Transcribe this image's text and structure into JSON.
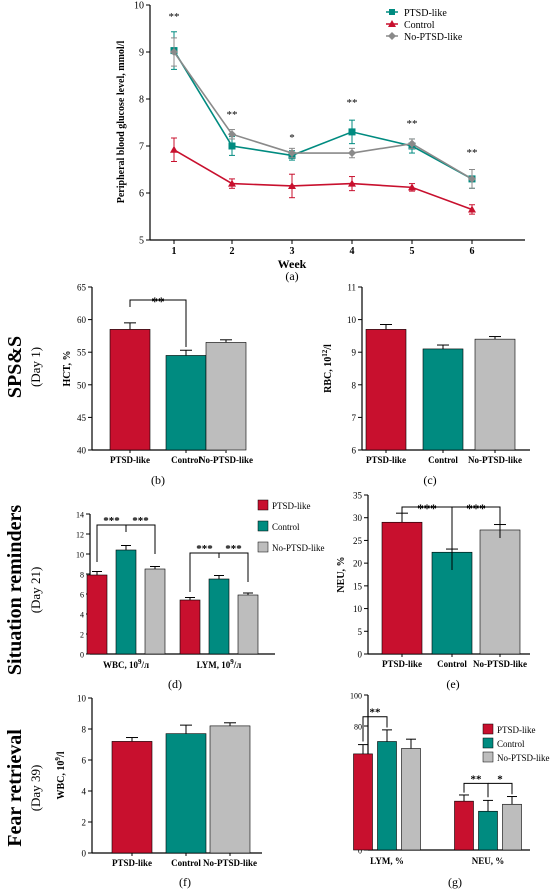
{
  "colors": {
    "ptsd": "#c8102e",
    "control": "#008b80",
    "nopsd": "#bdbdbd",
    "nopsd_line": "#8a8a8a"
  },
  "panel_a": {
    "panel_label": "(a)",
    "xlabel": "Week",
    "ylabel": "Peripheral blood glucose level, mmol/l",
    "x_ticks": [
      "1",
      "2",
      "3",
      "4",
      "5",
      "6"
    ],
    "y_ticks": [
      "5",
      "6",
      "7",
      "8",
      "9",
      "10"
    ],
    "significance": [
      "**",
      "**",
      "*",
      "**",
      "**",
      "**"
    ],
    "legend": [
      "PTSD-like",
      "Control",
      "No-PTSD-like"
    ]
  },
  "row_labels": [
    {
      "title": "SPS&S",
      "subtitle": "(Day 1)"
    },
    {
      "title": "Situation reminders",
      "subtitle": "(Day 21)"
    },
    {
      "title": "Fear retrieval",
      "subtitle": "(Day 39)"
    }
  ],
  "panel_b": {
    "panel_label": "(b)",
    "ylabel": "HCT, %",
    "categories": [
      "PTSD-like",
      "Control",
      "No-PTSD-like"
    ],
    "y_ticks": [
      "40",
      "45",
      "50",
      "55",
      "60",
      "65"
    ],
    "sig": [
      "**"
    ]
  },
  "panel_c": {
    "panel_label": "(c)",
    "ylabel": "RBC, 10^12/l",
    "categories": [
      "PTSD-like",
      "Control",
      "No-PTSD-like"
    ],
    "y_ticks": [
      "6",
      "7",
      "8",
      "9",
      "10",
      "11"
    ]
  },
  "panel_d": {
    "panel_label": "(d)",
    "groups": [
      "WBC, 10^9/л",
      "LYM, 10^9/л"
    ],
    "y_ticks": [
      "0",
      "2",
      "4",
      "6",
      "8",
      "10",
      "12",
      "14"
    ],
    "sig": [
      "***",
      "***",
      "***",
      "***"
    ],
    "legend": [
      "PTSD-like",
      "Control",
      "No-PTSD-like"
    ]
  },
  "panel_e": {
    "panel_label": "(e)",
    "ylabel": "NEU, %",
    "categories": [
      "PTSD-like",
      "Control",
      "No-PTSD-like"
    ],
    "y_ticks": [
      "0",
      "5",
      "10",
      "15",
      "20",
      "25",
      "30",
      "35"
    ],
    "sig": [
      "***",
      "***"
    ]
  },
  "panel_f": {
    "panel_label": "(f)",
    "ylabel": "WBC, 10^9/l",
    "categories": [
      "PTSD-like",
      "Control",
      "No-PTSD-like"
    ],
    "y_ticks": [
      "0",
      "2",
      "4",
      "6",
      "8",
      "10"
    ]
  },
  "panel_g": {
    "panel_label": "(g)",
    "groups": [
      "LYM, %",
      "NEU, %"
    ],
    "y_ticks": [
      "0",
      "20",
      "40",
      "60",
      "80",
      "100"
    ],
    "sig": [
      "**",
      "**",
      "*"
    ],
    "legend": [
      "PTSD-like",
      "Control",
      "No-PTSD-like"
    ]
  },
  "chart_data": [
    {
      "type": "line",
      "xlabel": "Week",
      "ylabel": "Peripheral blood glucose level, mmol/l",
      "x": [
        1,
        2,
        3,
        4,
        5,
        6
      ],
      "ylim": [
        5,
        10
      ],
      "series": [
        {
          "name": "PTSD-like",
          "values": [
            9.03,
            7.0,
            6.8,
            7.3,
            7.0,
            6.3
          ],
          "err": [
            0.4,
            0.2,
            0.1,
            0.25,
            0.15,
            0.2
          ]
        },
        {
          "name": "Control",
          "values": [
            6.92,
            6.2,
            6.15,
            6.2,
            6.12,
            5.65
          ],
          "err": [
            0.25,
            0.1,
            0.25,
            0.15,
            0.08,
            0.1
          ]
        },
        {
          "name": "No-PTSD-like",
          "values": [
            9.0,
            7.25,
            6.85,
            6.85,
            7.05,
            6.3
          ],
          "err": [
            0.3,
            0.1,
            0.1,
            0.1,
            0.1,
            0.2
          ]
        }
      ]
    },
    {
      "type": "bar",
      "ylabel": "HCT, %",
      "categories": [
        "PTSD-like",
        "Control",
        "No-PTSD-like"
      ],
      "values": [
        58.5,
        54.5,
        56.5
      ],
      "err": [
        1.0,
        0.8,
        0.4
      ],
      "ylim": [
        40,
        65
      ]
    },
    {
      "type": "bar",
      "ylabel": "RBC, 10^12/l",
      "categories": [
        "PTSD-like",
        "Control",
        "No-PTSD-like"
      ],
      "values": [
        9.7,
        9.1,
        9.4
      ],
      "err": [
        0.15,
        0.12,
        0.08
      ],
      "ylim": [
        6,
        11
      ]
    },
    {
      "type": "bar",
      "categories": [
        "WBC, 10^9/л",
        "LYM, 10^9/л"
      ],
      "ylim": [
        0,
        14
      ],
      "series": [
        {
          "name": "PTSD-like",
          "values": [
            7.9,
            5.4
          ],
          "err": [
            0.35,
            0.25
          ]
        },
        {
          "name": "Control",
          "values": [
            10.4,
            7.5
          ],
          "err": [
            0.45,
            0.35
          ]
        },
        {
          "name": "No-PTSD-like",
          "values": [
            8.5,
            5.9
          ],
          "err": [
            0.25,
            0.2
          ]
        }
      ]
    },
    {
      "type": "bar",
      "ylabel": "NEU, %",
      "categories": [
        "PTSD-like",
        "Control",
        "No-PTSD-like"
      ],
      "values": [
        29.0,
        22.4,
        27.3
      ],
      "err": [
        2.0,
        0.7,
        1.2
      ],
      "ylim": [
        0,
        35
      ]
    },
    {
      "type": "bar",
      "ylabel": "WBC, 10^9/l",
      "categories": [
        "PTSD-like",
        "Control",
        "No-PTSD-like"
      ],
      "values": [
        7.2,
        7.7,
        8.2
      ],
      "err": [
        0.25,
        0.55,
        0.2
      ],
      "ylim": [
        0,
        10
      ]
    },
    {
      "type": "bar",
      "categories": [
        "LYM, %",
        "NEU, %"
      ],
      "ylim": [
        0,
        100
      ],
      "series": [
        {
          "name": "PTSD-like",
          "values": [
            62,
            31.5
          ],
          "err": [
            6,
            4
          ]
        },
        {
          "name": "Control",
          "values": [
            70,
            25
          ],
          "err": [
            7.5,
            7
          ]
        },
        {
          "name": "No-PTSD-like",
          "values": [
            65.5,
            29.5
          ],
          "err": [
            6,
            5
          ]
        }
      ]
    }
  ]
}
